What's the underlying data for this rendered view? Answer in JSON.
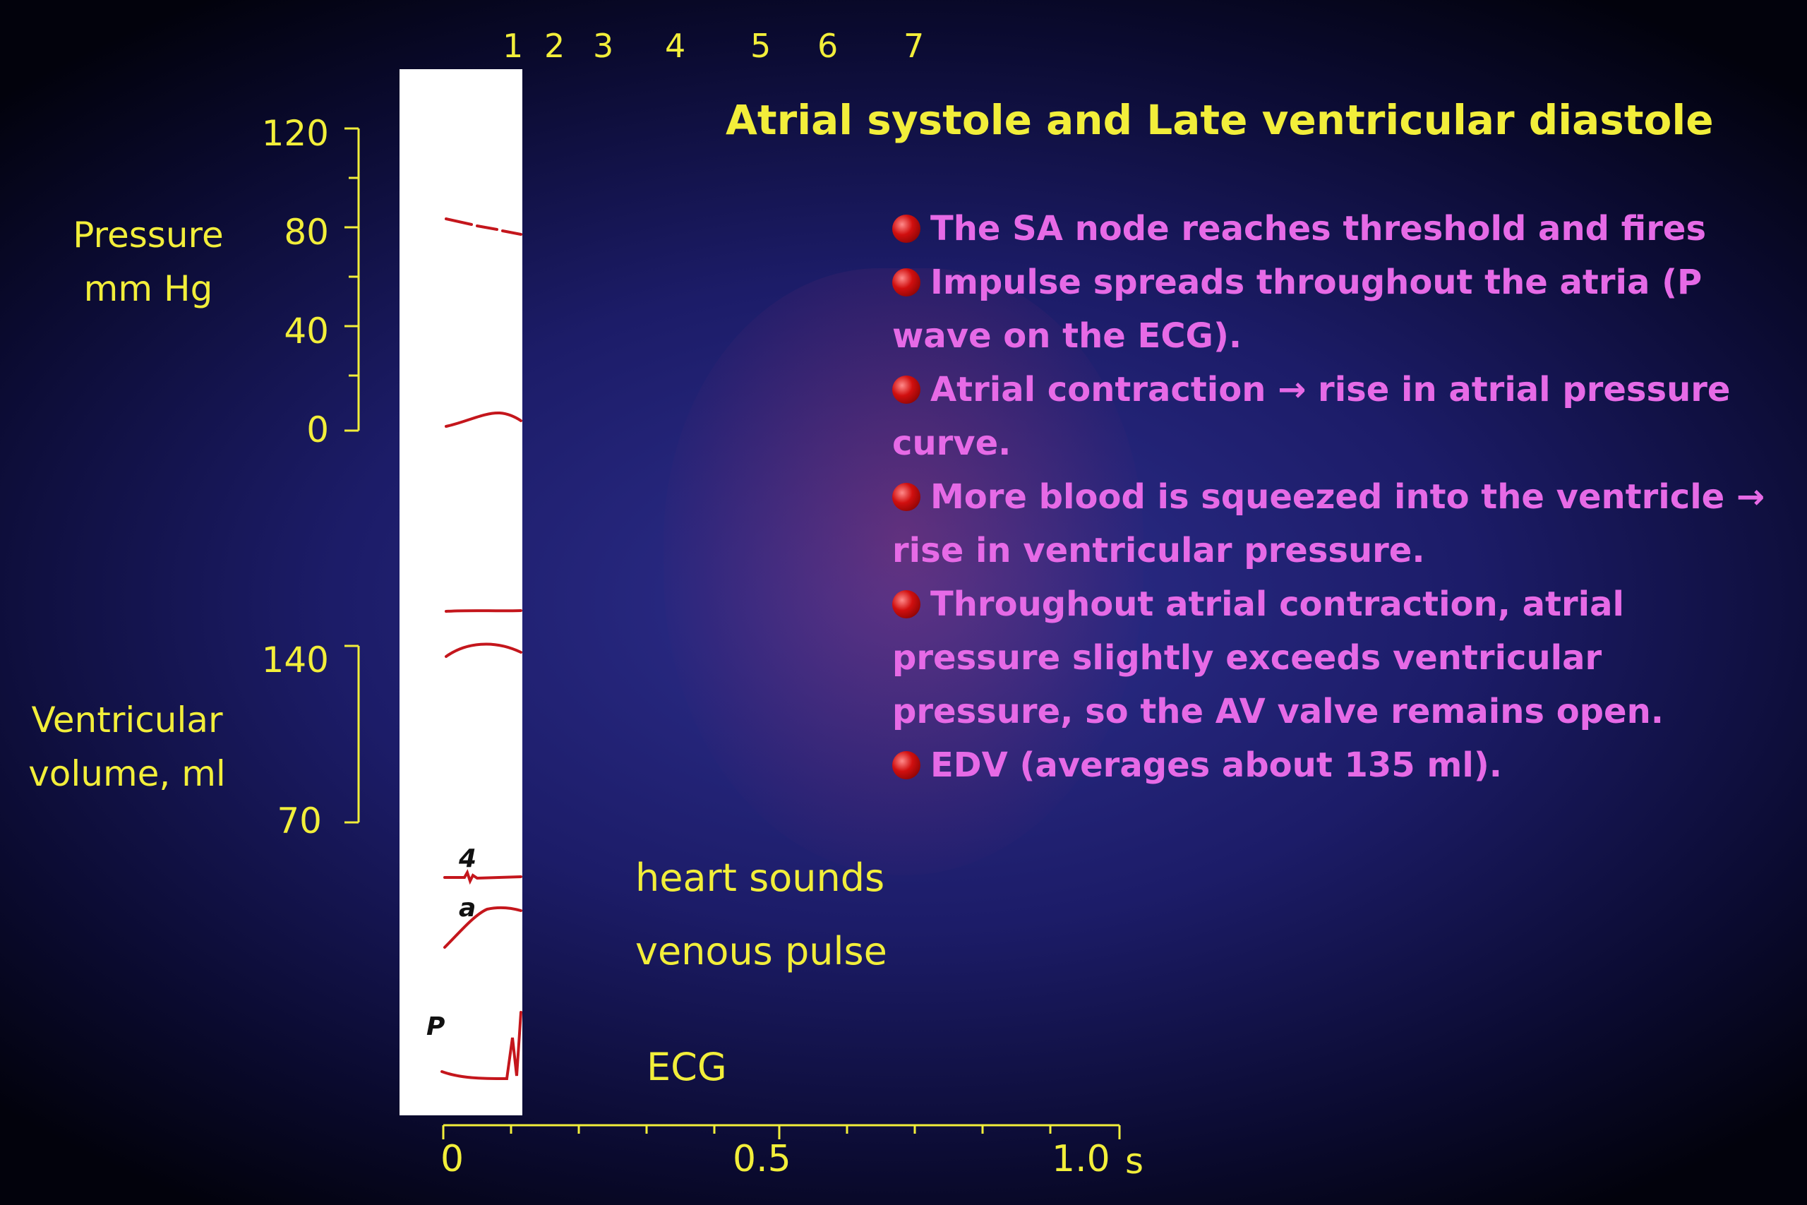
{
  "title": "Atrial systole and Late ventricular diastole",
  "phase_numbers": [
    "1",
    "2",
    "3",
    "4",
    "5",
    "6",
    "7"
  ],
  "pressure_axis": {
    "label_line1": "Pressure",
    "label_line2": "mm Hg",
    "ticks": [
      "120",
      "80",
      "40",
      "0"
    ]
  },
  "volume_axis": {
    "label_line1": "Ventricular",
    "label_line2": "volume, ml",
    "ticks": [
      "140",
      "70"
    ]
  },
  "time_axis": {
    "ticks": [
      "0",
      "0.5",
      "1.0"
    ],
    "unit": "s"
  },
  "traces": {
    "heart_sounds": "heart sounds",
    "venous_pulse": "venous pulse",
    "ecg": "ECG"
  },
  "wave_letters": {
    "heart_sound_4": "4",
    "venous_a": "a",
    "ecg_p": "P"
  },
  "bullets": [
    "The SA node reaches threshold and fires",
    "Impulse spreads throughout the atria (P wave on the ECG).",
    "Atrial contraction → rise in atrial pressure curve.",
    "More blood is squeezed into the ventricle → rise in ventricular pressure.",
    "Throughout atrial contraction, atrial pressure slightly exceeds ventricular pressure, so the AV valve remains open.",
    "EDV (averages about 135 ml)."
  ],
  "colors": {
    "text_yellow": "#f2ee3a",
    "bullet_magenta": "#e66ae6",
    "trace_red": "#c4161c",
    "background": "#1c1c68"
  }
}
